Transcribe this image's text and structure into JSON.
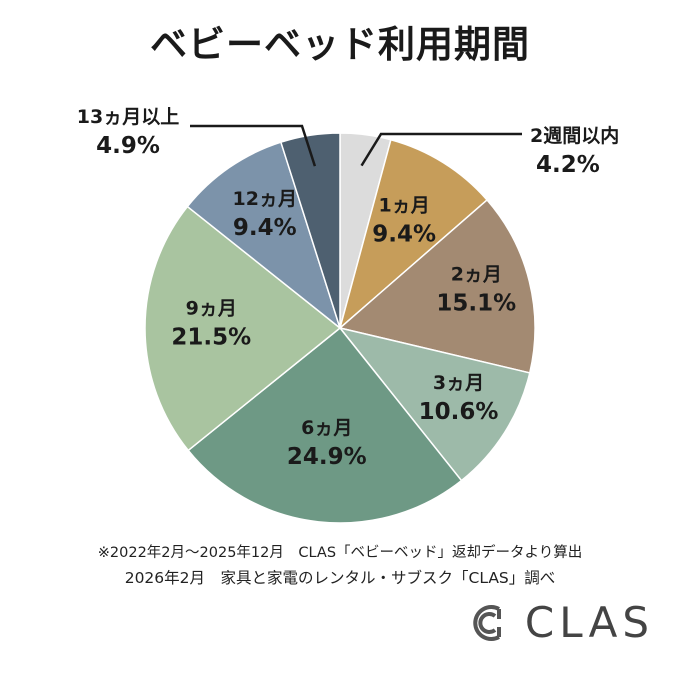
{
  "chart_data": {
    "type": "pie",
    "title": "ベビーベッド利用期間",
    "start_angle_deg": 0,
    "direction": "clockwise",
    "slices": [
      {
        "label": "2週間以内",
        "value": 4.2,
        "display": "4.2%",
        "color": "#dcdcdc"
      },
      {
        "label": "1ヵ月",
        "value": 9.4,
        "display": "9.4%",
        "color": "#c69d5a"
      },
      {
        "label": "2ヵ月",
        "value": 15.1,
        "display": "15.1%",
        "color": "#a38a72"
      },
      {
        "label": "3ヵ月",
        "value": 10.6,
        "display": "10.6%",
        "color": "#9dbaa9"
      },
      {
        "label": "6ヵ月",
        "value": 24.9,
        "display": "24.9%",
        "color": "#6e9985"
      },
      {
        "label": "9ヵ月",
        "value": 21.5,
        "display": "21.5%",
        "color": "#a9c4a0"
      },
      {
        "label": "12ヵ月",
        "value": 9.4,
        "display": "9.4%",
        "color": "#7c93aa"
      },
      {
        "label": "13ヵ月以上",
        "value": 4.9,
        "display": "4.9%",
        "color": "#4e6070"
      }
    ]
  },
  "footnote_1": "※2022年2月～2025年12月　CLAS「ベビーベッド」返却データより算出",
  "footnote_2": "2026年2月　家具と家電のレンタル・サブスク「CLAS」調べ",
  "brand": {
    "logo_icon": "clas-logo-icon",
    "text": "CLAS"
  }
}
